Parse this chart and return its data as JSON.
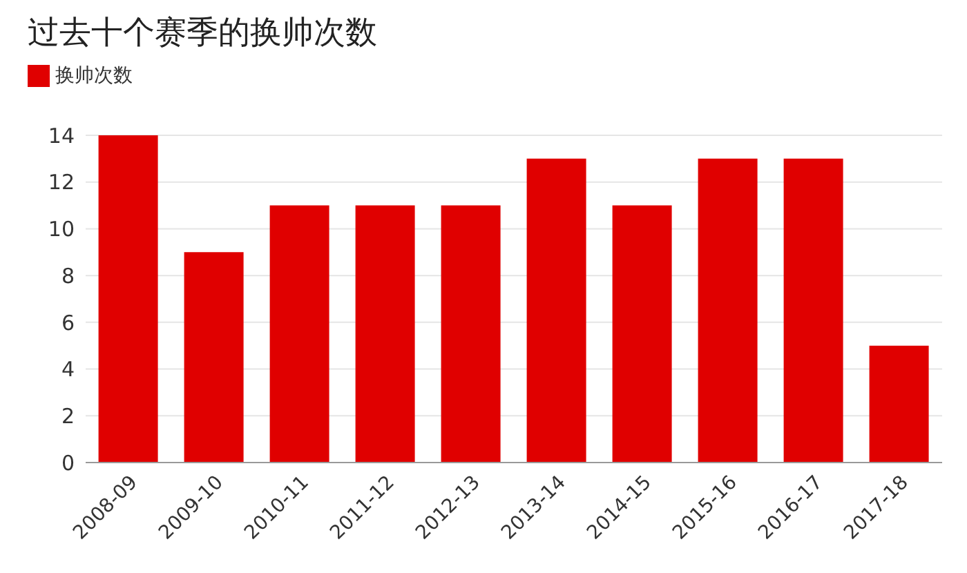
{
  "chart_data": {
    "type": "bar",
    "title": "过去十个赛季的换帅次数",
    "categories": [
      "2008-09",
      "2009-10",
      "2010-11",
      "2011-12",
      "2012-13",
      "2013-14",
      "2014-15",
      "2015-16",
      "2016-17",
      "2017-18"
    ],
    "series": [
      {
        "name": "换帅次数",
        "color": "#e00000",
        "values": [
          14,
          9,
          11,
          11,
          11,
          13,
          11,
          13,
          13,
          5
        ]
      }
    ],
    "ylim": [
      0,
      14
    ],
    "yticks": [
      0,
      2,
      4,
      6,
      8,
      10,
      12,
      14
    ],
    "grid": "y",
    "legend": "top left"
  }
}
